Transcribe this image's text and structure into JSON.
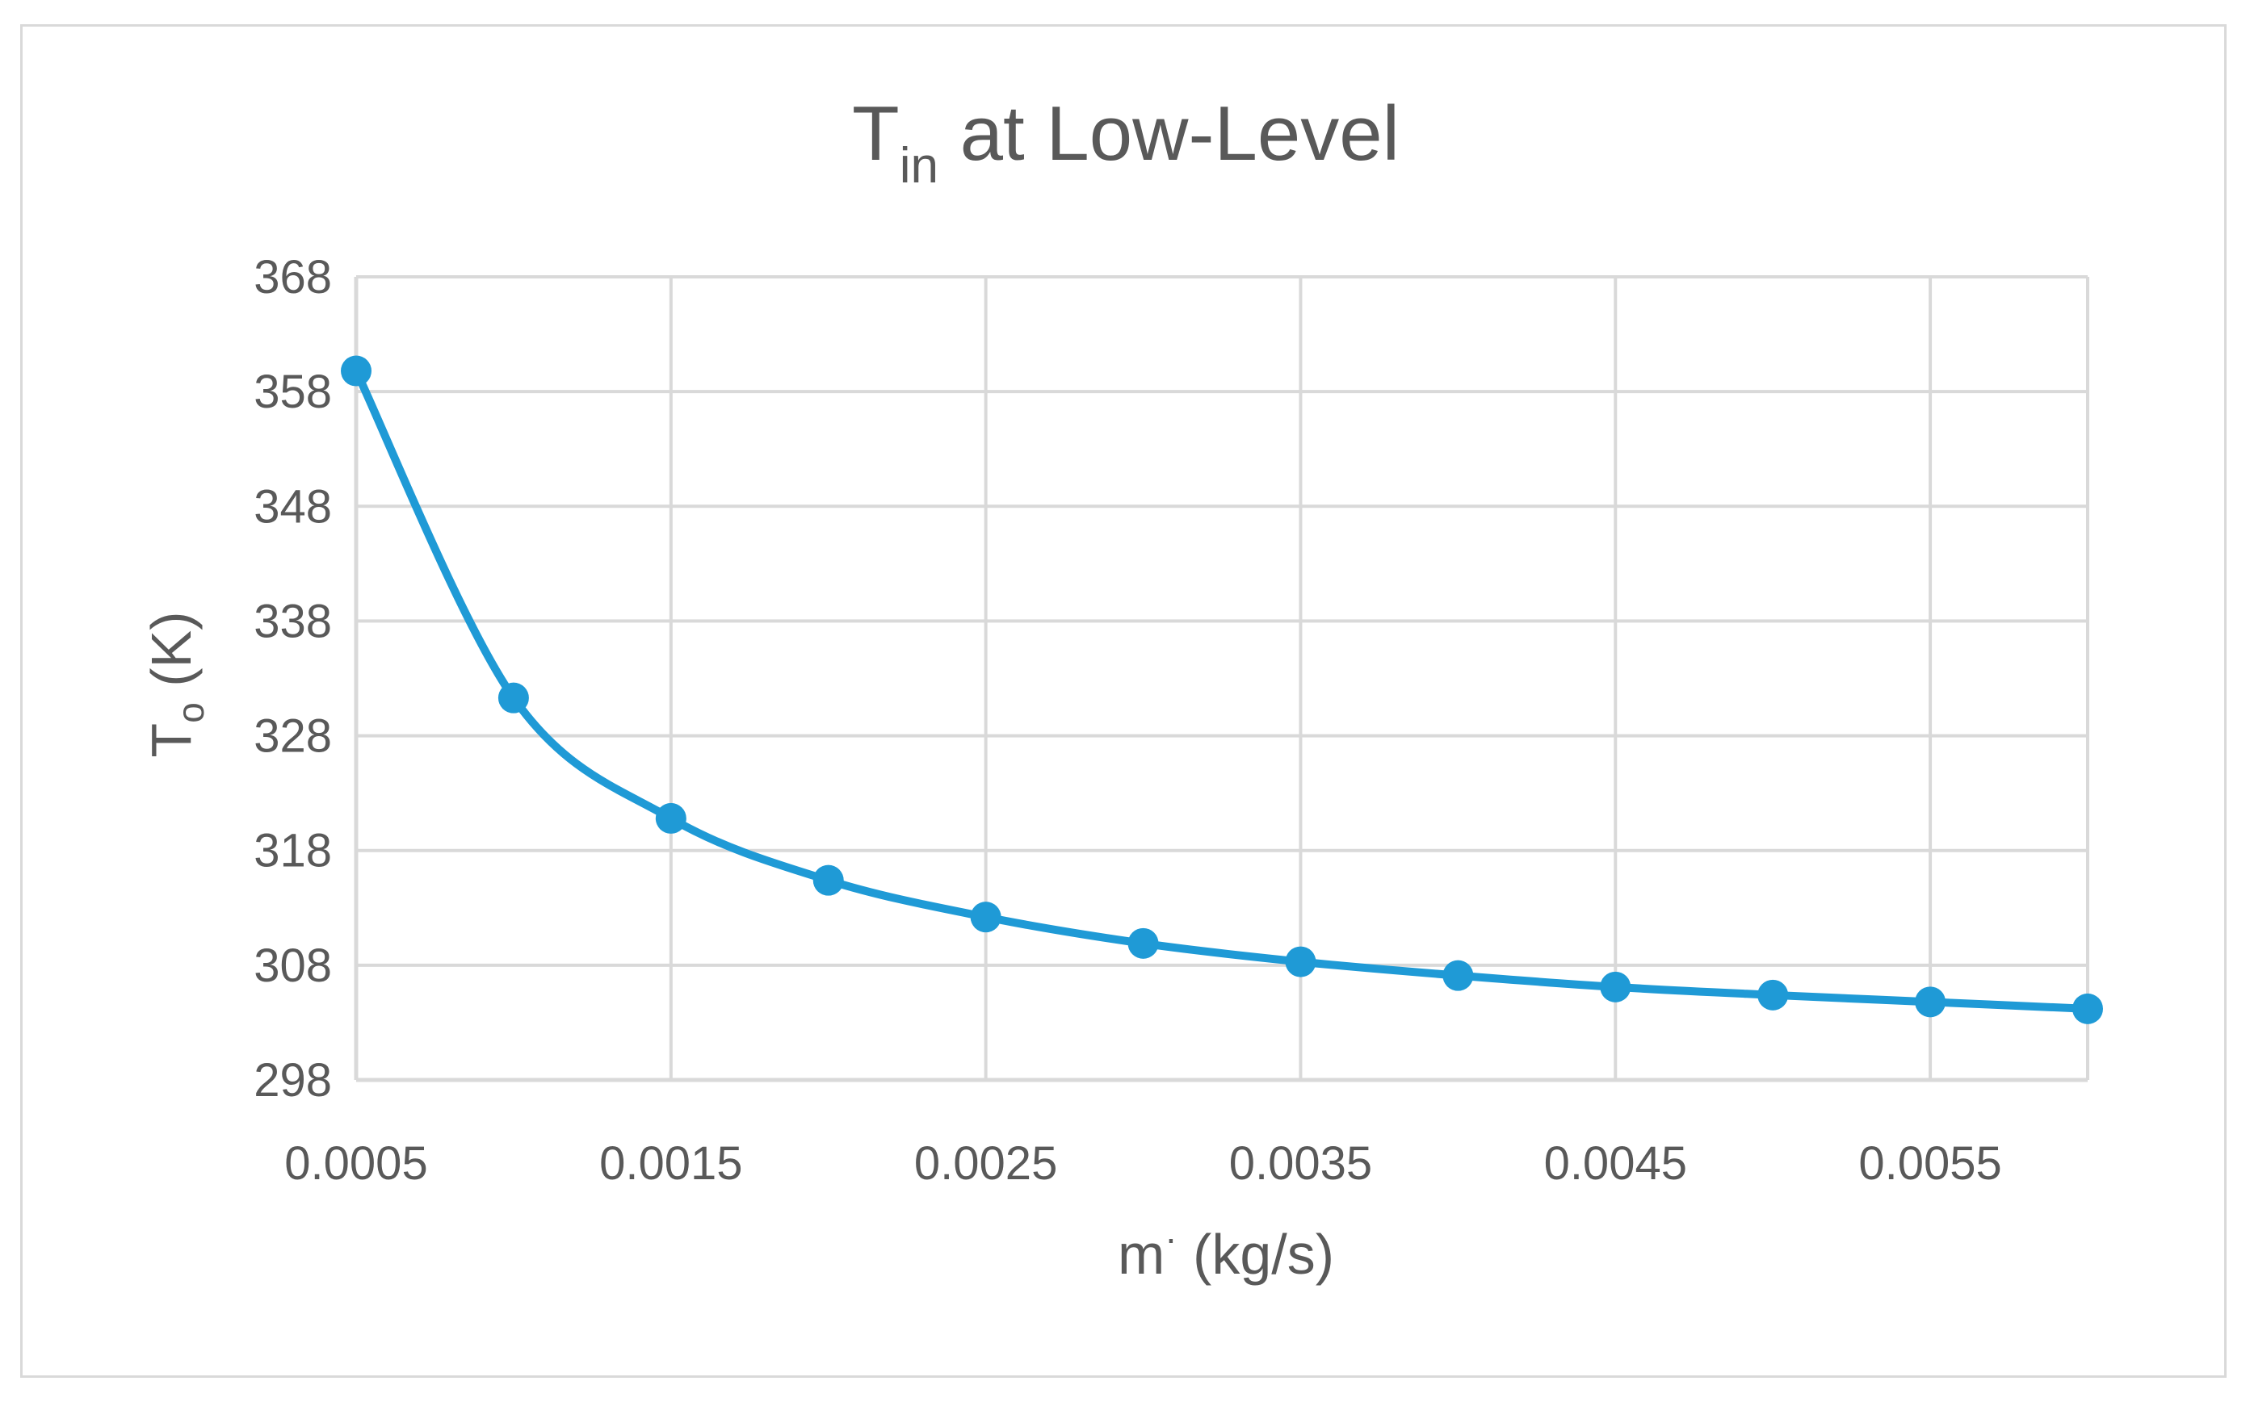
{
  "chart_data": {
    "type": "scatter",
    "title": "T",
    "title_subscript": "in",
    "title_rest": " at Low-Level",
    "xlabel": "m",
    "xlabel_superscript": "·",
    "xlabel_rest": " (kg/s)",
    "ylabel": "T",
    "ylabel_subscript": "o",
    "ylabel_rest": " (K)",
    "xlim": [
      0.0005,
      0.006
    ],
    "ylim": [
      298,
      368
    ],
    "x_ticks": [
      0.0005,
      0.0015,
      0.0025,
      0.0035,
      0.0045,
      0.0055
    ],
    "x_tick_labels": [
      "0.0005",
      "0.0015",
      "0.0025",
      "0.0035",
      "0.0045",
      "0.0055"
    ],
    "x_gridlines": [
      0.0005,
      0.0015,
      0.0025,
      0.0035,
      0.0045,
      0.0055,
      0.006
    ],
    "y_ticks": [
      298,
      308,
      318,
      328,
      338,
      348,
      358,
      368
    ],
    "y_tick_labels": [
      "298",
      "308",
      "318",
      "328",
      "338",
      "348",
      "358",
      "368"
    ],
    "grid": true,
    "smooth_line": true,
    "series": [
      {
        "name": "T_o",
        "color": "#1f9ad6",
        "x": [
          0.0005,
          0.001,
          0.0015,
          0.002,
          0.0025,
          0.003,
          0.0035,
          0.004,
          0.0045,
          0.005,
          0.0055,
          0.006
        ],
        "y": [
          359.8,
          331.3,
          320.8,
          315.4,
          312.2,
          309.9,
          308.3,
          307.1,
          306.1,
          305.4,
          304.8,
          304.2
        ]
      }
    ]
  }
}
